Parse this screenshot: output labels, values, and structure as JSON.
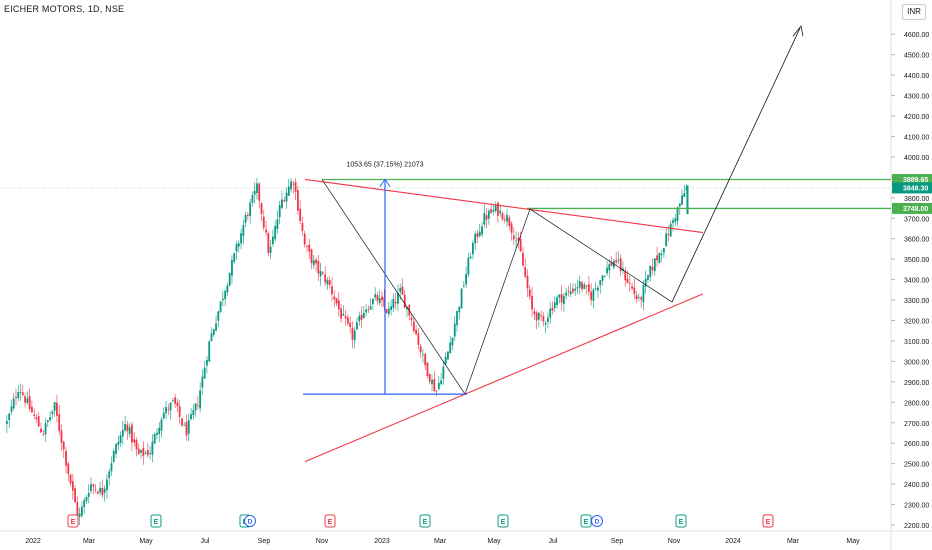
{
  "header": {
    "symbol_title": "EICHER MOTORS, 1D, NSE",
    "currency": "INR"
  },
  "chart_data": {
    "type": "candlestick",
    "title": "EICHER MOTORS, 1D, NSE",
    "ylim": [
      2170,
      4700
    ],
    "y_ticks": [
      "4600.00",
      "4500.00",
      "4400.00",
      "4300.00",
      "4200.00",
      "4100.00",
      "4000.00",
      "3900.00",
      "3800.00",
      "3700.00",
      "3600.00",
      "3500.00",
      "3400.00",
      "3300.00",
      "3200.00",
      "3100.00",
      "3000.00",
      "2900.00",
      "2800.00",
      "2700.00",
      "2600.00",
      "2500.00",
      "2400.00",
      "2300.00",
      "2200.00"
    ],
    "x_ticks": [
      "2022",
      "Mar",
      "May",
      "Jul",
      "Sep",
      "Nov",
      "2023",
      "Mar",
      "May",
      "Jul",
      "Sep",
      "Nov",
      "2024",
      "Mar",
      "May"
    ],
    "price_path": [
      2700,
      2880,
      2760,
      2650,
      2780,
      2500,
      2230,
      2400,
      2360,
      2560,
      2700,
      2540,
      2560,
      2740,
      2800,
      2650,
      2800,
      3100,
      3300,
      3500,
      3700,
      3850,
      3520,
      3780,
      3895,
      3560,
      3450,
      3380,
      3230,
      3120,
      3260,
      3310,
      3240,
      3340,
      3200,
      2990,
      2850,
      3050,
      3300,
      3560,
      3700,
      3745,
      3700,
      3550,
      3250,
      3190,
      3300,
      3330,
      3380,
      3320,
      3430,
      3500,
      3400,
      3290,
      3450,
      3560,
      3710,
      3848.3
    ],
    "price_labels": [
      {
        "value": 3889.65,
        "text": "3889.65",
        "color": "#4caf50"
      },
      {
        "value": 3848.3,
        "text": "3848.30",
        "color": "#089981"
      },
      {
        "value": 3748.0,
        "text": "3748.00",
        "color": "#4caf50"
      }
    ],
    "measure_label": "1053.65 (37.15%) 21073",
    "earnings_markers": [
      {
        "letter": "E",
        "color": "#f23645"
      },
      {
        "letter": "E",
        "color": "#089981"
      },
      {
        "letter": "E",
        "color": "#089981"
      },
      {
        "letter": "E",
        "color": "#f23645"
      },
      {
        "letter": "E",
        "color": "#089981"
      },
      {
        "letter": "E",
        "color": "#089981"
      },
      {
        "letter": "E",
        "color": "#089981"
      },
      {
        "letter": "E",
        "color": "#089981"
      },
      {
        "letter": "E",
        "color": "#f23645"
      }
    ],
    "dividend_markers": [
      {
        "letter": "D",
        "color": "#2962ff"
      },
      {
        "letter": "D",
        "color": "#2962ff"
      }
    ],
    "colors": {
      "up": "#089981",
      "down": "#f23645",
      "trendline": "#f23645",
      "level": "#4caf50",
      "measure": "#2962ff",
      "projection": "#131722"
    }
  }
}
